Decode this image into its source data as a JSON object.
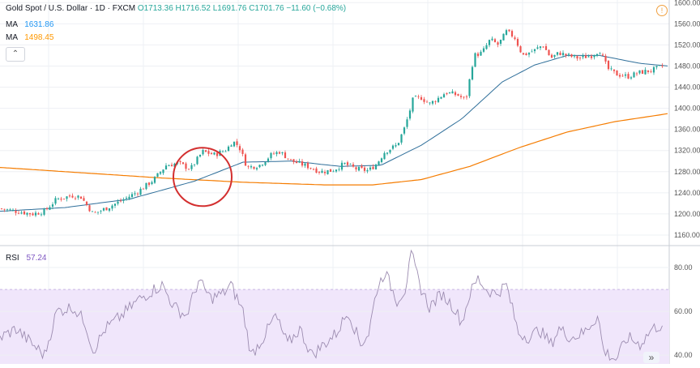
{
  "header": {
    "symbol": "Gold Spot / U.S. Dollar · 1D · FXCM",
    "open": "O1713.36",
    "high": "H1716.52",
    "low": "L1691.76",
    "close": "C1701.76",
    "change": "−11.60 (−0.68%)"
  },
  "ma_legend": [
    {
      "label": "MA",
      "value": "1631.86",
      "color": "#2196f3"
    },
    {
      "label": "MA",
      "value": "1498.45",
      "color": "#ff9800"
    }
  ],
  "rsi_legend": {
    "label": "RSI",
    "value": "57.24"
  },
  "colors": {
    "up": "#26a69a",
    "down": "#ef5350",
    "ma_fast": "#2f6f9a",
    "ma_slow": "#f57c00",
    "rsi_line": "#9c8cb0",
    "rsi_band": "#f0e6fb",
    "annotation": "#d32f2f",
    "grid": "#eef0f4"
  },
  "icons": {
    "info": "info-icon",
    "scroll": "double-chevron-right-icon",
    "toggle": "chevron-up-icon"
  },
  "toggle_glyph": "⌃",
  "info_glyph": "!",
  "scroll_glyph": "»",
  "chart_data": [
    {
      "type": "candlestick",
      "name": "price",
      "y_ticks": [
        1160,
        1200,
        1240,
        1280,
        1320,
        1360,
        1400,
        1440,
        1480,
        1520,
        1560,
        1600
      ],
      "y_tick_labels": [
        "1160.00",
        "1200.00",
        "1240.00",
        "1280.00",
        "1320.00",
        "1360.00",
        "1400.00",
        "1440.00",
        "1480.00",
        "1520.00",
        "1560.00",
        "1600.00"
      ],
      "ylim": [
        1140,
        1605
      ],
      "close_path_keypoints": [
        [
          0,
          1210
        ],
        [
          20,
          1205
        ],
        [
          40,
          1200
        ],
        [
          55,
          1205
        ],
        [
          70,
          1228
        ],
        [
          90,
          1235
        ],
        [
          100,
          1232
        ],
        [
          115,
          1200
        ],
        [
          130,
          1210
        ],
        [
          150,
          1225
        ],
        [
          170,
          1242
        ],
        [
          190,
          1265
        ],
        [
          205,
          1292
        ],
        [
          220,
          1296
        ],
        [
          235,
          1285
        ],
        [
          250,
          1318
        ],
        [
          265,
          1312
        ],
        [
          280,
          1322
        ],
        [
          287,
          1338
        ],
        [
          295,
          1328
        ],
        [
          305,
          1288
        ],
        [
          320,
          1292
        ],
        [
          335,
          1312
        ],
        [
          345,
          1318
        ],
        [
          360,
          1300
        ],
        [
          380,
          1290
        ],
        [
          395,
          1280
        ],
        [
          410,
          1282
        ],
        [
          425,
          1295
        ],
        [
          440,
          1285
        ],
        [
          455,
          1282
        ],
        [
          465,
          1295
        ],
        [
          475,
          1318
        ],
        [
          490,
          1330
        ],
        [
          500,
          1365
        ],
        [
          510,
          1418
        ],
        [
          520,
          1420
        ],
        [
          530,
          1408
        ],
        [
          540,
          1418
        ],
        [
          550,
          1430
        ],
        [
          565,
          1425
        ],
        [
          575,
          1415
        ],
        [
          585,
          1500
        ],
        [
          595,
          1505
        ],
        [
          605,
          1530
        ],
        [
          615,
          1520
        ],
        [
          625,
          1545
        ],
        [
          635,
          1535
        ],
        [
          645,
          1500
        ],
        [
          660,
          1510
        ],
        [
          670,
          1520
        ],
        [
          680,
          1495
        ],
        [
          690,
          1505
        ],
        [
          700,
          1500
        ],
        [
          715,
          1495
        ],
        [
          730,
          1500
        ],
        [
          740,
          1510
        ],
        [
          750,
          1475
        ],
        [
          760,
          1465
        ],
        [
          775,
          1460
        ],
        [
          790,
          1468
        ],
        [
          805,
          1472
        ],
        [
          818,
          1480
        ]
      ],
      "ma_fast_keypoints": [
        [
          0,
          1205
        ],
        [
          80,
          1212
        ],
        [
          160,
          1228
        ],
        [
          240,
          1262
        ],
        [
          300,
          1298
        ],
        [
          360,
          1300
        ],
        [
          420,
          1290
        ],
        [
          470,
          1292
        ],
        [
          520,
          1330
        ],
        [
          570,
          1380
        ],
        [
          620,
          1450
        ],
        [
          660,
          1482
        ],
        [
          700,
          1500
        ],
        [
          740,
          1500
        ],
        [
          790,
          1485
        ],
        [
          825,
          1480
        ]
      ],
      "ma_slow_keypoints": [
        [
          0,
          1288
        ],
        [
          100,
          1278
        ],
        [
          200,
          1268
        ],
        [
          300,
          1260
        ],
        [
          400,
          1255
        ],
        [
          460,
          1255
        ],
        [
          520,
          1265
        ],
        [
          580,
          1290
        ],
        [
          640,
          1325
        ],
        [
          700,
          1355
        ],
        [
          760,
          1375
        ],
        [
          825,
          1390
        ]
      ],
      "annotation": {
        "type": "circle",
        "center": [
          250,
          1270
        ],
        "note": ""
      }
    },
    {
      "type": "line",
      "name": "RSI",
      "y_ticks": [
        40,
        60,
        80
      ],
      "y_tick_labels": [
        "40.00",
        "60.00",
        "80.00"
      ],
      "band": [
        30,
        70
      ],
      "ylim": [
        36,
        90
      ],
      "keypoints": [
        [
          0,
          48
        ],
        [
          20,
          52
        ],
        [
          40,
          45
        ],
        [
          55,
          40
        ],
        [
          70,
          60
        ],
        [
          90,
          62
        ],
        [
          105,
          55
        ],
        [
          115,
          42
        ],
        [
          130,
          52
        ],
        [
          150,
          58
        ],
        [
          170,
          65
        ],
        [
          190,
          70
        ],
        [
          200,
          72
        ],
        [
          215,
          62
        ],
        [
          230,
          58
        ],
        [
          245,
          74
        ],
        [
          260,
          66
        ],
        [
          275,
          68
        ],
        [
          285,
          72
        ],
        [
          300,
          60
        ],
        [
          310,
          40
        ],
        [
          325,
          48
        ],
        [
          340,
          58
        ],
        [
          355,
          45
        ],
        [
          370,
          52
        ],
        [
          385,
          40
        ],
        [
          400,
          45
        ],
        [
          415,
          50
        ],
        [
          430,
          60
        ],
        [
          445,
          45
        ],
        [
          455,
          50
        ],
        [
          465,
          70
        ],
        [
          475,
          78
        ],
        [
          490,
          65
        ],
        [
          500,
          70
        ],
        [
          508,
          86
        ],
        [
          518,
          72
        ],
        [
          530,
          62
        ],
        [
          545,
          68
        ],
        [
          560,
          62
        ],
        [
          570,
          55
        ],
        [
          580,
          68
        ],
        [
          590,
          75
        ],
        [
          600,
          70
        ],
        [
          612,
          68
        ],
        [
          625,
          72
        ],
        [
          640,
          50
        ],
        [
          655,
          48
        ],
        [
          665,
          52
        ],
        [
          680,
          45
        ],
        [
          690,
          52
        ],
        [
          705,
          48
        ],
        [
          720,
          50
        ],
        [
          738,
          58
        ],
        [
          745,
          42
        ],
        [
          760,
          38
        ],
        [
          775,
          48
        ],
        [
          790,
          45
        ],
        [
          805,
          52
        ],
        [
          818,
          54
        ]
      ]
    }
  ]
}
